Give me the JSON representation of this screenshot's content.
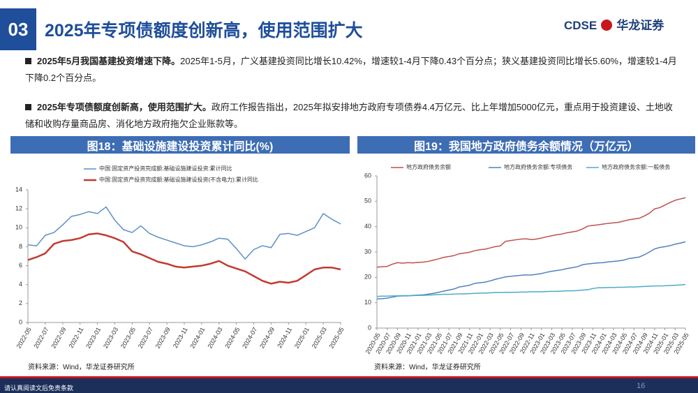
{
  "header": {
    "section": "03",
    "title": "2025年专项债额度创新高，使用范围扩大",
    "logo_text": "CDSE",
    "brand": "华龙证券"
  },
  "bullets": [
    {
      "bold": "2025年5月我国基建投资增速下降。",
      "text": "2025年1-5月，广义基建投资同比增长10.42%，增速较1-4月下降0.43个百分点；狭义基建投资同比增长5.60%，增速较1-4月下降0.2个百分点。"
    },
    {
      "bold": "2025年专项债额度创新高，使用范围扩大。",
      "text": "政府工作报告指出，2025年拟安排地方政府专项债券4.4万亿元、比上年增加5000亿元，重点用于投资建设、土地收储和收购存量商品房、消化地方政府拖欠企业账款等。"
    }
  ],
  "chart_data": [
    {
      "type": "line",
      "title": "图18：基础设施建设投资累计同比(%)",
      "source": "资料来源：Wind，华龙证券研究所",
      "legend": "top-left",
      "categories": [
        "2022-05",
        null,
        "2022-07",
        null,
        "2022-09",
        null,
        "2022-11",
        null,
        "2023-01",
        null,
        "2023-03",
        null,
        "2023-05",
        null,
        "2023-07",
        null,
        "2023-09",
        null,
        "2023-11",
        null,
        "2024-01",
        null,
        "2024-03",
        null,
        "2024-05",
        null,
        "2024-07",
        null,
        "2024-09",
        null,
        "2024-11",
        null,
        "2025-01",
        null,
        "2025-03",
        null,
        "2025-05"
      ],
      "ylim": [
        0,
        14
      ],
      "yticks": [
        0,
        2,
        4,
        6,
        8,
        10,
        12,
        14
      ],
      "series": [
        {
          "name": "中国:固定资产投资完成额:基础设施建设投资:累计同比",
          "color": "#5b8fc7",
          "line_width": 1.5,
          "values": [
            8.2,
            8.1,
            9.2,
            9.5,
            10.3,
            11.2,
            11.4,
            11.7,
            11.5,
            12.2,
            10.8,
            9.8,
            9.5,
            10.2,
            9.4,
            9.0,
            8.7,
            8.4,
            8.1,
            8.0,
            8.2,
            8.5,
            8.9,
            8.8,
            7.8,
            6.7,
            7.7,
            8.1,
            7.9,
            9.3,
            9.4,
            9.2,
            9.6,
            10.0,
            11.5,
            10.9,
            10.4
          ]
        },
        {
          "name": "中国:固定资产投资完成额:基础设施建设投资(不含电力):累计同比",
          "color": "#c23a30",
          "line_width": 2.5,
          "values": [
            6.6,
            6.9,
            7.3,
            8.3,
            8.6,
            8.7,
            8.9,
            9.3,
            9.4,
            9.2,
            8.9,
            8.5,
            7.5,
            7.2,
            6.8,
            6.4,
            6.2,
            5.9,
            5.8,
            5.9,
            6.0,
            6.2,
            6.5,
            6.0,
            5.7,
            5.4,
            4.9,
            4.4,
            4.1,
            4.3,
            4.2,
            4.4,
            5.0,
            5.6,
            5.8,
            5.8,
            5.6
          ]
        }
      ]
    },
    {
      "type": "line",
      "title": "图19：我国地方政府债务余额情况（万亿元）",
      "source": "资料来源：Wind，华龙证券研究所",
      "legend": "top",
      "categories": [
        "2020-05",
        null,
        "2020-07",
        null,
        "2020-09",
        null,
        "2020-11",
        null,
        "2021-01",
        null,
        "2021-03",
        null,
        "2021-05",
        null,
        "2021-07",
        null,
        "2021-09",
        null,
        "2021-11",
        null,
        "2022-01",
        null,
        "2022-03",
        null,
        "2022-05",
        null,
        "2022-07",
        null,
        "2022-09",
        null,
        "2022-11",
        null,
        "2023-01",
        null,
        "2023-03",
        null,
        "2023-05",
        null,
        "2023-07",
        null,
        "2023-09",
        null,
        "2023-11",
        null,
        "2024-01",
        null,
        "2024-03",
        null,
        "2024-05",
        null,
        "2024-07",
        null,
        "2024-09",
        null,
        "2024-11",
        null,
        "2025-01",
        null,
        "2025-03",
        null,
        "2025-05"
      ],
      "ylim": [
        0,
        60
      ],
      "yticks": [
        0,
        10,
        20,
        30,
        40,
        50,
        60
      ],
      "series": [
        {
          "name": "地方政府债务余额",
          "color": "#c0504d",
          "line_width": 1.5,
          "values": [
            24.0,
            24.2,
            24.3,
            25.2,
            25.8,
            25.6,
            25.8,
            25.7,
            25.9,
            26.0,
            26.3,
            26.8,
            27.3,
            27.9,
            28.2,
            28.6,
            29.3,
            29.6,
            29.9,
            30.5,
            30.9,
            31.1,
            31.6,
            32.1,
            32.4,
            34.2,
            34.5,
            34.8,
            35.1,
            35.2,
            34.9,
            35.1,
            35.5,
            36.0,
            36.4,
            36.8,
            37.1,
            37.6,
            37.9,
            38.3,
            39.1,
            40.2,
            40.5,
            40.7,
            41.0,
            41.3,
            41.5,
            41.7,
            42.2,
            42.7,
            43.0,
            43.3,
            44.2,
            45.3,
            47.0,
            47.5,
            48.5,
            49.5,
            50.4,
            50.9,
            51.4
          ]
        },
        {
          "name": "地方政府债务余额:专项债务",
          "color": "#4f81bd",
          "line_width": 1.5,
          "values": [
            11.5,
            11.6,
            11.8,
            12.2,
            12.6,
            12.7,
            12.7,
            12.9,
            13.0,
            13.1,
            13.4,
            13.7,
            14.1,
            14.6,
            15.0,
            15.4,
            16.2,
            16.5,
            16.9,
            17.6,
            17.9,
            18.1,
            18.6,
            19.2,
            19.7,
            20.2,
            20.4,
            20.6,
            20.8,
            21.0,
            20.9,
            21.2,
            21.5,
            22.0,
            22.4,
            22.7,
            23.0,
            23.5,
            23.8,
            24.2,
            25.0,
            25.3,
            25.5,
            25.7,
            25.8,
            26.1,
            26.3,
            26.5,
            26.8,
            27.4,
            27.7,
            28.0,
            28.9,
            30.0,
            31.2,
            31.8,
            32.1,
            32.5,
            33.1,
            33.5,
            34.0
          ]
        },
        {
          "name": "地方政府债务余额:一般债务",
          "color": "#4bacc6",
          "line_width": 1.5,
          "values": [
            12.5,
            12.6,
            12.6,
            12.7,
            12.7,
            12.8,
            12.8,
            12.8,
            12.9,
            12.9,
            13.0,
            13.1,
            13.2,
            13.3,
            13.3,
            13.4,
            13.5,
            13.5,
            13.6,
            13.7,
            13.8,
            13.8,
            13.9,
            14.0,
            14.0,
            14.1,
            14.1,
            14.1,
            14.2,
            14.2,
            14.3,
            14.3,
            14.3,
            14.4,
            14.5,
            14.5,
            14.6,
            14.7,
            14.7,
            14.8,
            15.0,
            15.1,
            15.6,
            15.9,
            15.9,
            16.0,
            16.0,
            16.1,
            16.1,
            16.2,
            16.2,
            16.3,
            16.4,
            16.5,
            16.6,
            16.6,
            16.7,
            16.8,
            16.9,
            17.0,
            17.2
          ]
        }
      ]
    }
  ],
  "footer": {
    "disclaimer": "请认真阅读文后免责条款",
    "page": 16
  }
}
